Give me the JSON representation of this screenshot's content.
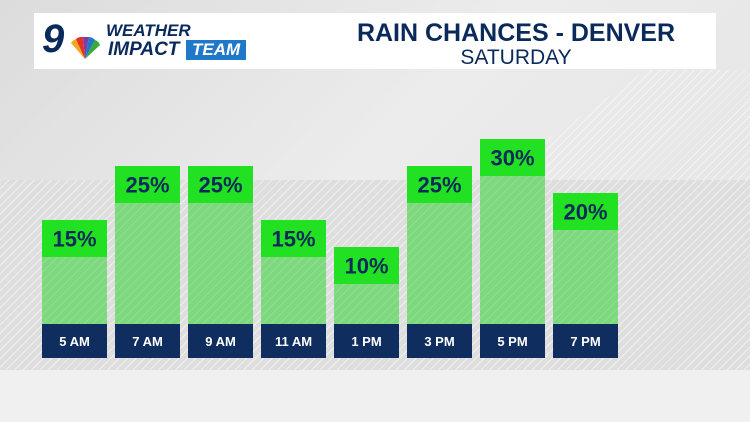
{
  "header": {
    "logo_number": "9",
    "logo_weather": "WEATHER",
    "logo_impact": "IMPACT",
    "logo_team": "TEAM",
    "title": "RAIN CHANCES - DENVER",
    "subtitle": "SATURDAY"
  },
  "colors": {
    "navy": "#0b2a5c",
    "green_top": "#22e022",
    "green_body": "#7ed97e",
    "label_bg": "#0f2d5e"
  },
  "chart_data": {
    "type": "bar",
    "title": "RAIN CHANCES - DENVER",
    "subtitle": "SATURDAY",
    "categories": [
      "5 AM",
      "7 AM",
      "9 AM",
      "11 AM",
      "1 PM",
      "3 PM",
      "5 PM",
      "7 PM"
    ],
    "values": [
      15,
      25,
      25,
      15,
      10,
      25,
      30,
      20
    ],
    "value_labels": [
      "15%",
      "25%",
      "25%",
      "15%",
      "10%",
      "25%",
      "30%",
      "20%"
    ],
    "unit": "%",
    "ylim": [
      0,
      100
    ],
    "xlabel": "",
    "ylabel": ""
  }
}
